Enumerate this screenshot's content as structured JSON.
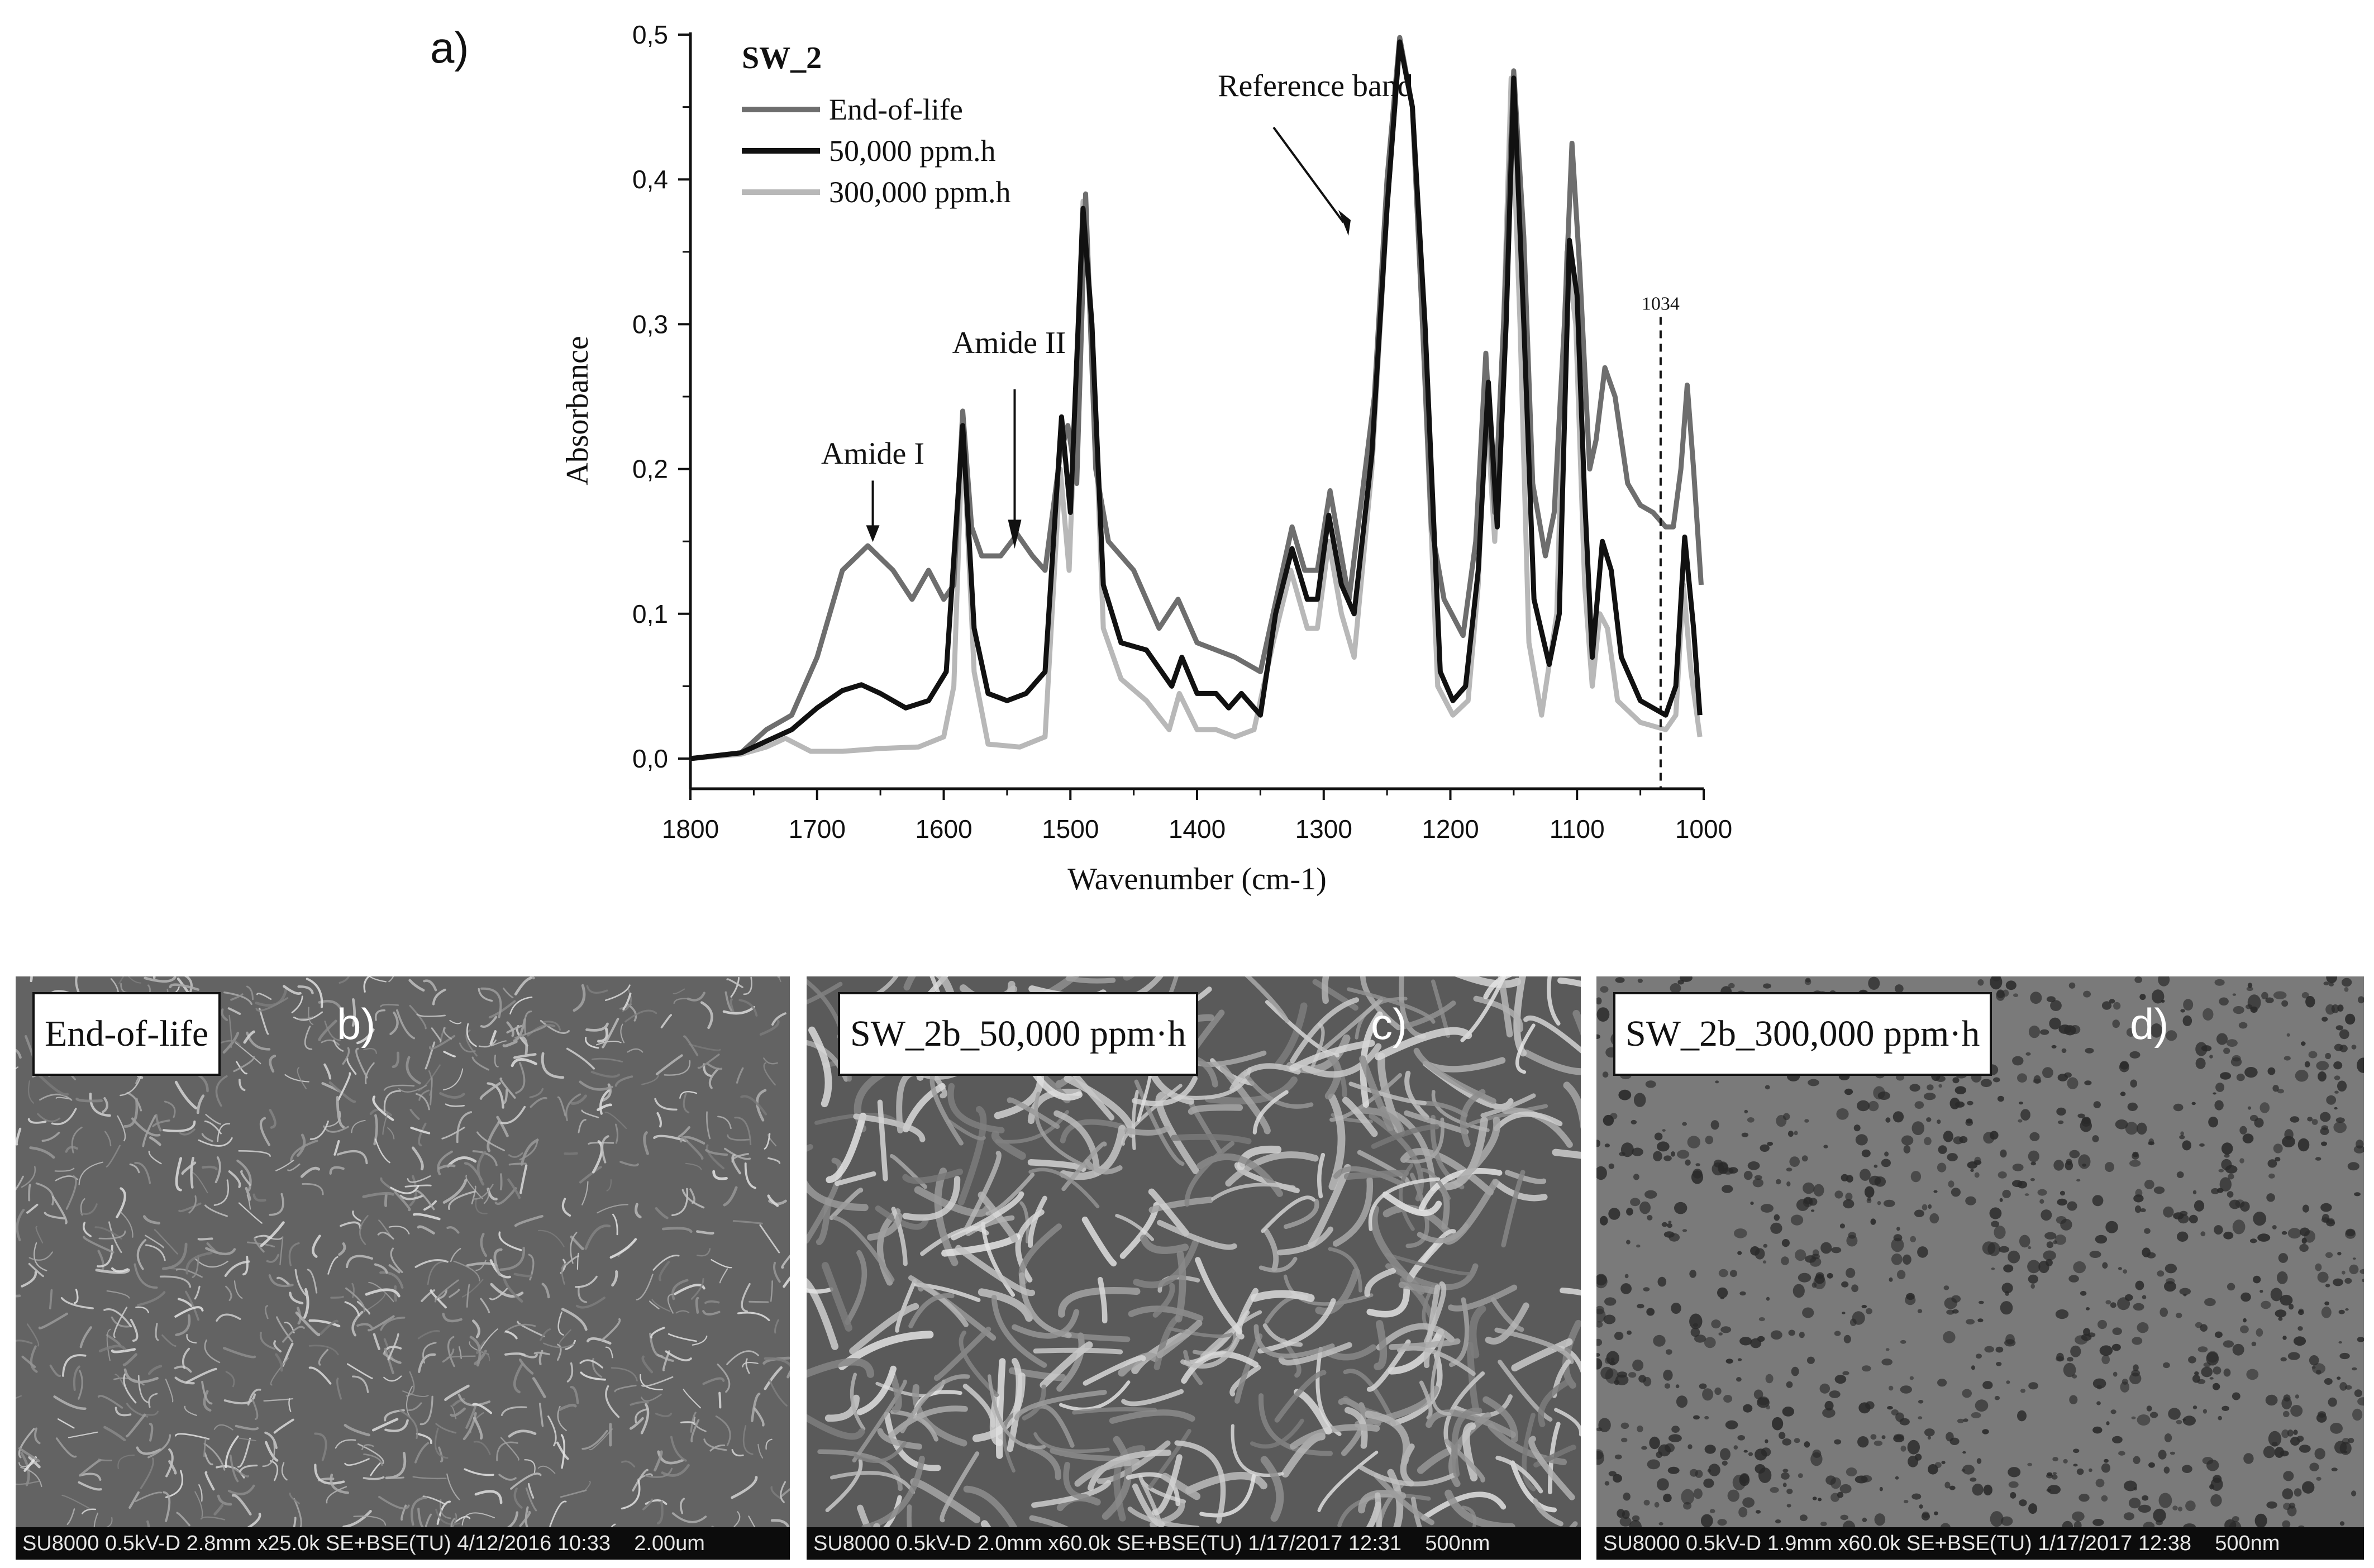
{
  "panel_a_label": "a)",
  "chart_data": {
    "type": "line",
    "title": "",
    "xlabel": "Wavenumber (cm-1)",
    "ylabel": "Absorbance",
    "xlim": [
      1800,
      1000
    ],
    "ylim": [
      -0.02,
      0.5
    ],
    "x_ticks": [
      "1800",
      "1700",
      "1600",
      "1500",
      "1400",
      "1300",
      "1200",
      "1100",
      "1000"
    ],
    "y_ticks": [
      "0,0",
      "0,1",
      "0,2",
      "0,3",
      "0,4",
      "0,5"
    ],
    "legend_title": "SW_2",
    "legend_position": "top-left",
    "series": [
      {
        "name": "End-of-life",
        "color": "#6e6e6e",
        "points": [
          [
            1800,
            0.0
          ],
          [
            1760,
            0.004
          ],
          [
            1740,
            0.02
          ],
          [
            1720,
            0.03
          ],
          [
            1700,
            0.07
          ],
          [
            1680,
            0.13
          ],
          [
            1660,
            0.147
          ],
          [
            1640,
            0.13
          ],
          [
            1625,
            0.11
          ],
          [
            1612,
            0.13
          ],
          [
            1600,
            0.11
          ],
          [
            1592,
            0.12
          ],
          [
            1585,
            0.24
          ],
          [
            1578,
            0.16
          ],
          [
            1570,
            0.14
          ],
          [
            1555,
            0.14
          ],
          [
            1542,
            0.155
          ],
          [
            1530,
            0.14
          ],
          [
            1520,
            0.13
          ],
          [
            1508,
            0.21
          ],
          [
            1502,
            0.23
          ],
          [
            1495,
            0.19
          ],
          [
            1488,
            0.39
          ],
          [
            1480,
            0.2
          ],
          [
            1470,
            0.15
          ],
          [
            1450,
            0.13
          ],
          [
            1430,
            0.09
          ],
          [
            1415,
            0.11
          ],
          [
            1400,
            0.08
          ],
          [
            1385,
            0.075
          ],
          [
            1370,
            0.07
          ],
          [
            1350,
            0.06
          ],
          [
            1335,
            0.12
          ],
          [
            1325,
            0.16
          ],
          [
            1315,
            0.13
          ],
          [
            1305,
            0.13
          ],
          [
            1295,
            0.185
          ],
          [
            1288,
            0.15
          ],
          [
            1280,
            0.11
          ],
          [
            1260,
            0.25
          ],
          [
            1250,
            0.4
          ],
          [
            1240,
            0.498
          ],
          [
            1230,
            0.45
          ],
          [
            1222,
            0.3
          ],
          [
            1215,
            0.16
          ],
          [
            1205,
            0.11
          ],
          [
            1190,
            0.085
          ],
          [
            1180,
            0.15
          ],
          [
            1172,
            0.28
          ],
          [
            1165,
            0.17
          ],
          [
            1158,
            0.3
          ],
          [
            1150,
            0.475
          ],
          [
            1142,
            0.36
          ],
          [
            1135,
            0.19
          ],
          [
            1125,
            0.14
          ],
          [
            1118,
            0.17
          ],
          [
            1110,
            0.3
          ],
          [
            1104,
            0.425
          ],
          [
            1098,
            0.34
          ],
          [
            1090,
            0.2
          ],
          [
            1085,
            0.22
          ],
          [
            1078,
            0.27
          ],
          [
            1070,
            0.25
          ],
          [
            1060,
            0.19
          ],
          [
            1050,
            0.175
          ],
          [
            1040,
            0.17
          ],
          [
            1030,
            0.16
          ],
          [
            1024,
            0.16
          ],
          [
            1018,
            0.2
          ],
          [
            1013,
            0.258
          ],
          [
            1008,
            0.2
          ],
          [
            1002,
            0.12
          ]
        ]
      },
      {
        "name": "50,000 ppm.h",
        "color": "#111111",
        "points": [
          [
            1800,
            0.0
          ],
          [
            1760,
            0.004
          ],
          [
            1740,
            0.012
          ],
          [
            1720,
            0.02
          ],
          [
            1700,
            0.035
          ],
          [
            1680,
            0.047
          ],
          [
            1665,
            0.051
          ],
          [
            1650,
            0.045
          ],
          [
            1630,
            0.035
          ],
          [
            1612,
            0.04
          ],
          [
            1598,
            0.06
          ],
          [
            1585,
            0.23
          ],
          [
            1576,
            0.09
          ],
          [
            1565,
            0.045
          ],
          [
            1550,
            0.04
          ],
          [
            1535,
            0.045
          ],
          [
            1520,
            0.06
          ],
          [
            1507,
            0.236
          ],
          [
            1500,
            0.17
          ],
          [
            1490,
            0.38
          ],
          [
            1483,
            0.3
          ],
          [
            1474,
            0.12
          ],
          [
            1460,
            0.08
          ],
          [
            1440,
            0.075
          ],
          [
            1420,
            0.05
          ],
          [
            1412,
            0.07
          ],
          [
            1400,
            0.045
          ],
          [
            1385,
            0.045
          ],
          [
            1375,
            0.035
          ],
          [
            1365,
            0.045
          ],
          [
            1350,
            0.03
          ],
          [
            1338,
            0.1
          ],
          [
            1325,
            0.145
          ],
          [
            1313,
            0.11
          ],
          [
            1305,
            0.11
          ],
          [
            1296,
            0.168
          ],
          [
            1286,
            0.12
          ],
          [
            1276,
            0.1
          ],
          [
            1262,
            0.21
          ],
          [
            1250,
            0.38
          ],
          [
            1240,
            0.495
          ],
          [
            1230,
            0.45
          ],
          [
            1220,
            0.3
          ],
          [
            1208,
            0.06
          ],
          [
            1198,
            0.04
          ],
          [
            1188,
            0.05
          ],
          [
            1178,
            0.13
          ],
          [
            1170,
            0.26
          ],
          [
            1163,
            0.16
          ],
          [
            1156,
            0.3
          ],
          [
            1150,
            0.47
          ],
          [
            1142,
            0.3
          ],
          [
            1134,
            0.11
          ],
          [
            1122,
            0.065
          ],
          [
            1114,
            0.1
          ],
          [
            1106,
            0.358
          ],
          [
            1100,
            0.32
          ],
          [
            1094,
            0.18
          ],
          [
            1088,
            0.07
          ],
          [
            1080,
            0.15
          ],
          [
            1073,
            0.13
          ],
          [
            1065,
            0.07
          ],
          [
            1050,
            0.04
          ],
          [
            1030,
            0.03
          ],
          [
            1022,
            0.05
          ],
          [
            1015,
            0.153
          ],
          [
            1008,
            0.09
          ],
          [
            1003,
            0.03
          ]
        ]
      },
      {
        "name": "300,000 ppm.h",
        "color": "#b8b8b8",
        "points": [
          [
            1800,
            0.0
          ],
          [
            1760,
            0.003
          ],
          [
            1740,
            0.008
          ],
          [
            1725,
            0.014
          ],
          [
            1705,
            0.005
          ],
          [
            1680,
            0.005
          ],
          [
            1650,
            0.007
          ],
          [
            1620,
            0.008
          ],
          [
            1600,
            0.015
          ],
          [
            1592,
            0.05
          ],
          [
            1585,
            0.23
          ],
          [
            1576,
            0.06
          ],
          [
            1565,
            0.01
          ],
          [
            1540,
            0.008
          ],
          [
            1520,
            0.015
          ],
          [
            1508,
            0.2
          ],
          [
            1501,
            0.13
          ],
          [
            1490,
            0.385
          ],
          [
            1483,
            0.3
          ],
          [
            1474,
            0.09
          ],
          [
            1460,
            0.055
          ],
          [
            1440,
            0.04
          ],
          [
            1422,
            0.02
          ],
          [
            1414,
            0.045
          ],
          [
            1400,
            0.02
          ],
          [
            1385,
            0.02
          ],
          [
            1370,
            0.015
          ],
          [
            1355,
            0.02
          ],
          [
            1340,
            0.08
          ],
          [
            1326,
            0.13
          ],
          [
            1313,
            0.09
          ],
          [
            1305,
            0.09
          ],
          [
            1296,
            0.15
          ],
          [
            1286,
            0.1
          ],
          [
            1276,
            0.07
          ],
          [
            1262,
            0.2
          ],
          [
            1250,
            0.38
          ],
          [
            1240,
            0.495
          ],
          [
            1230,
            0.45
          ],
          [
            1222,
            0.3
          ],
          [
            1210,
            0.05
          ],
          [
            1198,
            0.03
          ],
          [
            1186,
            0.04
          ],
          [
            1178,
            0.12
          ],
          [
            1172,
            0.25
          ],
          [
            1165,
            0.15
          ],
          [
            1158,
            0.3
          ],
          [
            1152,
            0.47
          ],
          [
            1145,
            0.3
          ],
          [
            1138,
            0.08
          ],
          [
            1128,
            0.03
          ],
          [
            1116,
            0.1
          ],
          [
            1108,
            0.35
          ],
          [
            1101,
            0.3
          ],
          [
            1094,
            0.12
          ],
          [
            1088,
            0.05
          ],
          [
            1082,
            0.1
          ],
          [
            1076,
            0.09
          ],
          [
            1068,
            0.04
          ],
          [
            1050,
            0.025
          ],
          [
            1030,
            0.02
          ],
          [
            1022,
            0.03
          ],
          [
            1016,
            0.12
          ],
          [
            1010,
            0.06
          ],
          [
            1003,
            0.015
          ]
        ]
      }
    ],
    "annotations": [
      {
        "text": "Amide I",
        "x": 1656,
        "y": 0.165
      },
      {
        "text": "Amide II",
        "x": 1544,
        "y": 0.14
      },
      {
        "text": "Reference band",
        "x": 1276,
        "y": 0.37
      },
      {
        "text": "1034",
        "x": 1034,
        "y": 0.32
      }
    ],
    "reference_line_x": 1034
  },
  "sem_panels": [
    {
      "label": "End-of-life",
      "letter": "b)",
      "footer": "SU8000 0.5kV-D 2.8mm x25.0k SE+BSE(TU) 4/12/2016 10:33",
      "scale": "2.00um"
    },
    {
      "label": "SW_2b_50,000 ppm·h",
      "letter": "c)",
      "footer": "SU8000 0.5kV-D 2.0mm x60.0k SE+BSE(TU) 1/17/2017 12:31",
      "scale": "500nm"
    },
    {
      "label": "SW_2b_300,000 ppm·h",
      "letter": "d)",
      "footer": "SU8000 0.5kV-D 1.9mm x60.0k SE+BSE(TU) 1/17/2017 12:38",
      "scale": "500nm"
    }
  ]
}
